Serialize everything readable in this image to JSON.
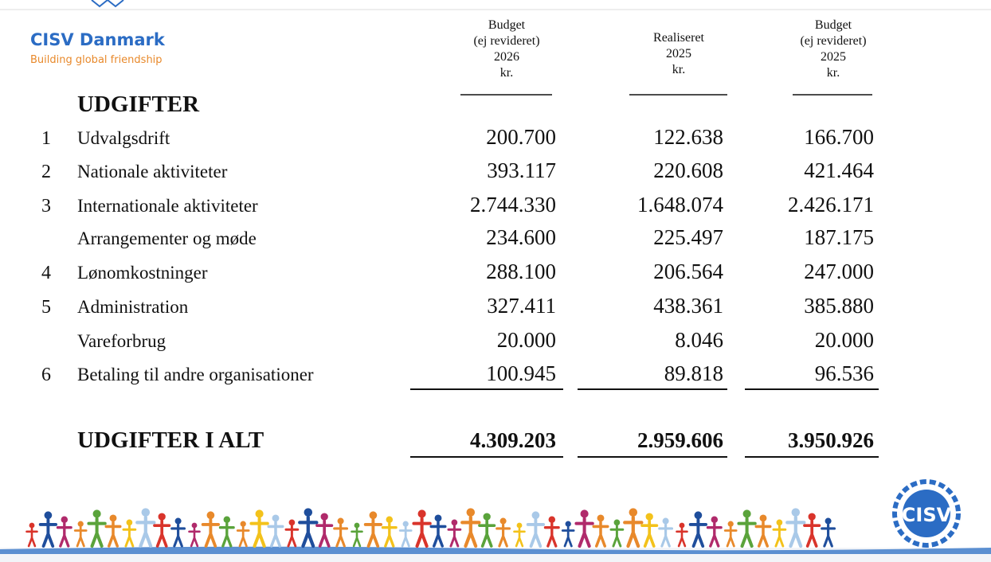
{
  "header": {
    "org": "CISV Danmark",
    "tagline": "Building global friendship"
  },
  "columns": [
    {
      "lines": [
        "Budget",
        "(ej revideret)",
        "2026",
        "kr."
      ]
    },
    {
      "lines": [
        "Realiseret",
        "2025",
        "kr."
      ]
    },
    {
      "lines": [
        "Budget",
        "(ej revideret)",
        "2025",
        "kr."
      ]
    }
  ],
  "section_title": "UDGIFTER",
  "rows": [
    {
      "num": "1",
      "label": "Udvalgsdrift",
      "values": [
        "200.700",
        "122.638",
        "166.700"
      ]
    },
    {
      "num": "2",
      "label": "Nationale aktiviteter",
      "values": [
        "393.117",
        "220.608",
        "421.464"
      ]
    },
    {
      "num": "3",
      "label": "Internationale aktiviteter",
      "values": [
        "2.744.330",
        "1.648.074",
        "2.426.171"
      ]
    },
    {
      "num": null,
      "label": "Arrangementer og møde",
      "values": [
        "234.600",
        "225.497",
        "187.175"
      ]
    },
    {
      "num": "4",
      "label": "Lønomkostninger",
      "values": [
        "288.100",
        "206.564",
        "247.000"
      ]
    },
    {
      "num": "5",
      "label": "Administration",
      "values": [
        "327.411",
        "438.361",
        "385.880"
      ]
    },
    {
      "num": null,
      "label": "Vareforbrug",
      "values": [
        "20.000",
        "8.046",
        "20.000"
      ]
    },
    {
      "num": "6",
      "label": "Betaling til andre organisationer",
      "values": [
        "100.945",
        "89.818",
        "96.536"
      ]
    }
  ],
  "total": {
    "label": "UDGIFTER I ALT",
    "values": [
      "4.309.203",
      "2.959.606",
      "3.950.926"
    ]
  },
  "logo": "CISV"
}
